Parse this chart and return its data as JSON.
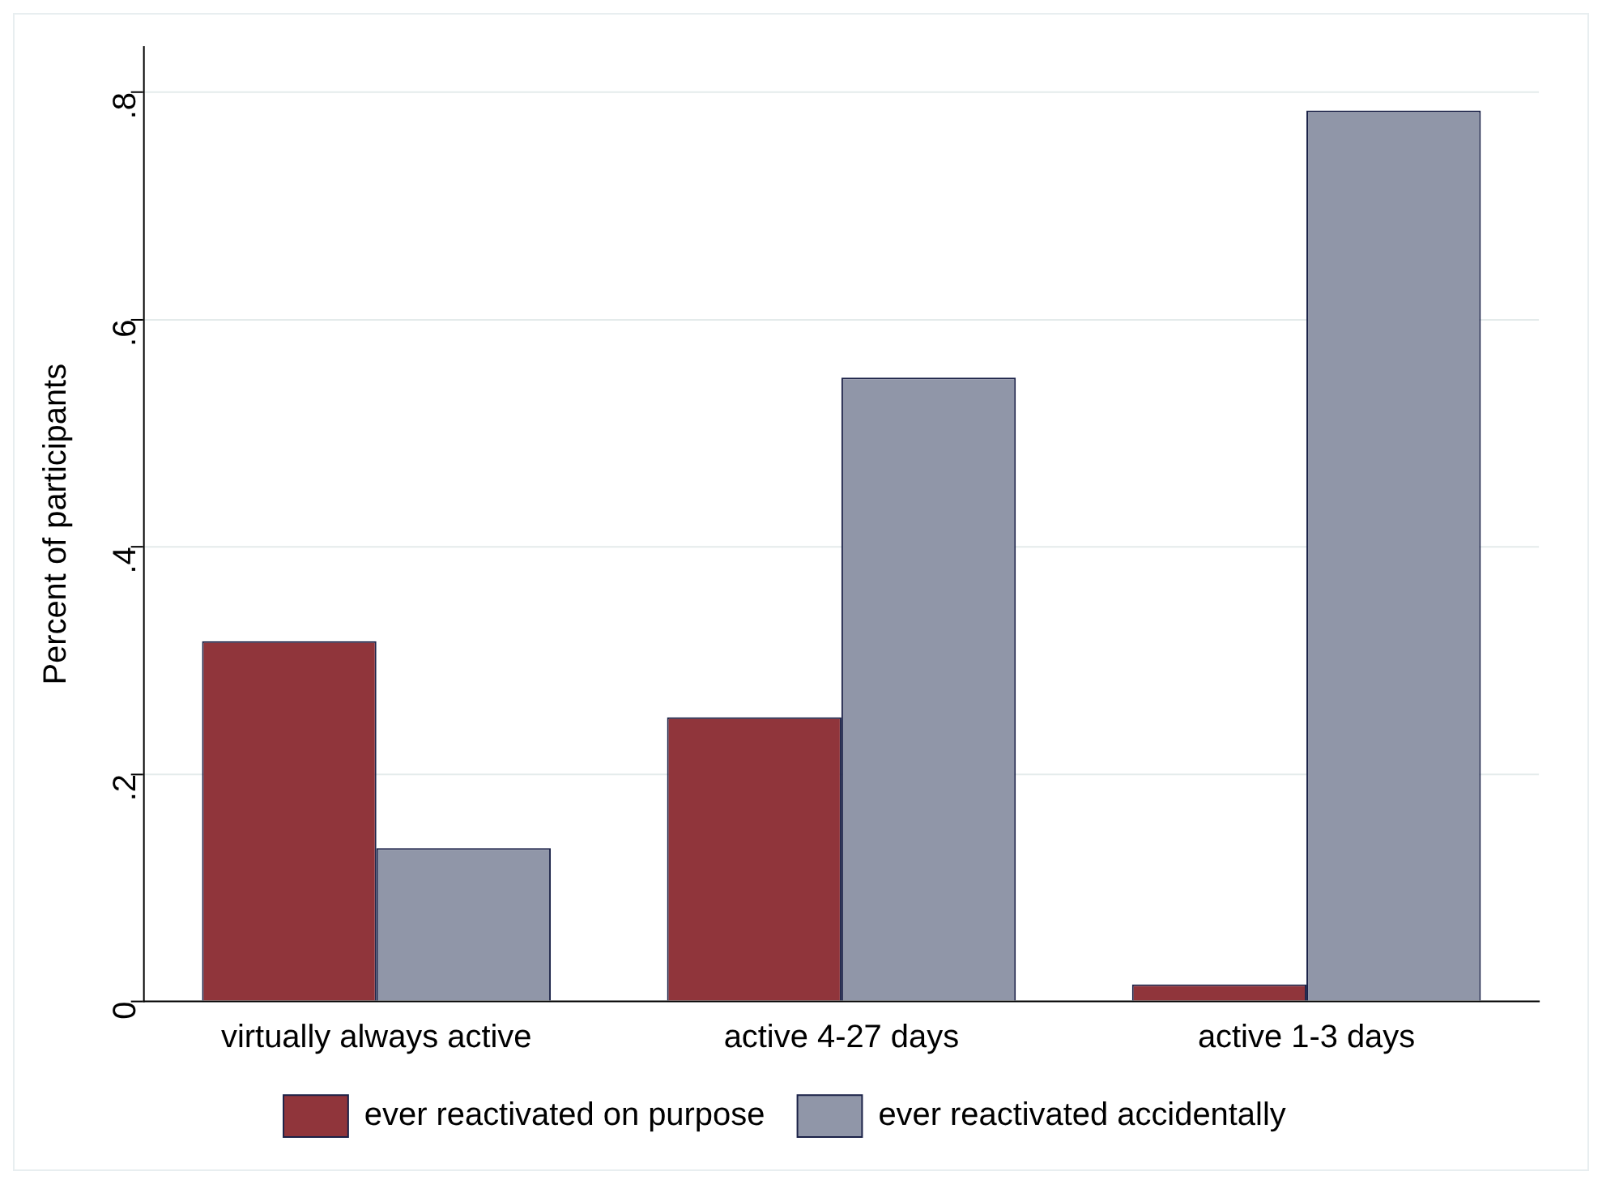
{
  "chart_data": {
    "type": "bar",
    "ylabel": "Percent of participants",
    "categories": [
      "virtually always active",
      "active 4-27 days",
      "active 1-3 days"
    ],
    "series": [
      {
        "name": "ever reactivated on purpose",
        "color": "#90353b",
        "values": [
          0.317,
          0.25,
          0.015
        ]
      },
      {
        "name": "ever reactivated accidentally",
        "color": "#9096a8",
        "values": [
          0.135,
          0.549,
          0.784
        ]
      }
    ],
    "ylim": [
      0,
      0.84
    ],
    "yticks": [
      {
        "value": 0,
        "label": "0"
      },
      {
        "value": 0.2,
        "label": ".2"
      },
      {
        "value": 0.4,
        "label": ".4"
      },
      {
        "value": 0.6,
        "label": ".6"
      },
      {
        "value": 0.8,
        "label": ".8"
      }
    ],
    "grid": "y",
    "legend": "bottom"
  }
}
